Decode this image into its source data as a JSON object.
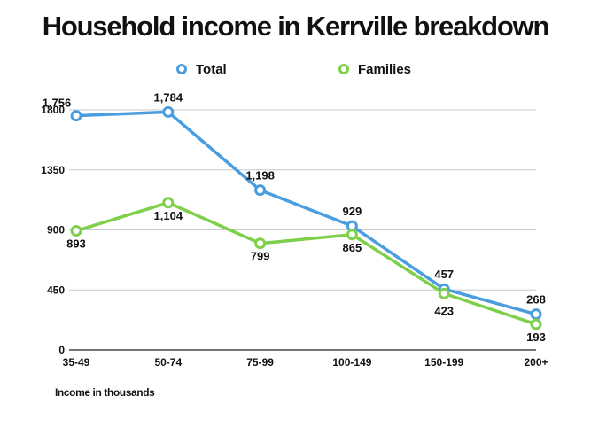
{
  "chart_data": {
    "type": "line",
    "title": "Household income in Kerrville breakdown",
    "xlabel": "Income in thousands",
    "ylabel": "",
    "categories": [
      "35-49",
      "50-74",
      "75-99",
      "100-149",
      "150-199",
      "200+"
    ],
    "ylim": [
      0,
      1800
    ],
    "yticks": [
      0,
      450,
      900,
      1350,
      1800
    ],
    "grid": true,
    "legend_position": "top",
    "series": [
      {
        "name": "Total",
        "color": "#4a9ee0",
        "values": [
          1756,
          1784,
          1198,
          929,
          457,
          268
        ],
        "labels": [
          "1,756",
          "1,784",
          "1,198",
          "929",
          "457",
          "268"
        ]
      },
      {
        "name": "Families",
        "color": "#7ed04b",
        "values": [
          893,
          1104,
          799,
          865,
          423,
          193
        ],
        "labels": [
          "893",
          "1,104",
          "799",
          "865",
          "423",
          "193"
        ]
      }
    ]
  }
}
